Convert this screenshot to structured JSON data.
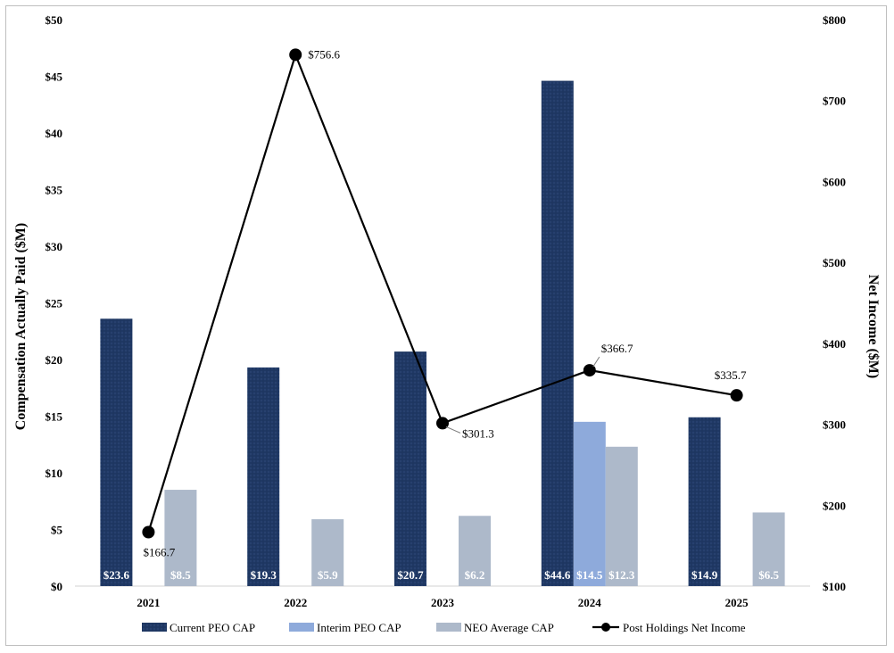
{
  "chart_data": {
    "type": "bar",
    "categories": [
      "2021",
      "2022",
      "2023",
      "2024",
      "2025"
    ],
    "series": [
      {
        "name": "Current PEO CAP",
        "axis": "left",
        "color": "#1f3864",
        "values": [
          23.6,
          19.3,
          20.7,
          44.6,
          14.9
        ],
        "labels": [
          "$23.6",
          "$19.3",
          "$20.7",
          "$44.6",
          "$14.9"
        ]
      },
      {
        "name": "Interim PEO CAP",
        "axis": "left",
        "color": "#8eaadb",
        "values": [
          null,
          null,
          null,
          14.5,
          null
        ],
        "labels": [
          "",
          "",
          "",
          "$14.5",
          ""
        ]
      },
      {
        "name": "NEO Average CAP",
        "axis": "left",
        "color": "#adb9ca",
        "values": [
          8.5,
          5.9,
          6.2,
          12.3,
          6.5
        ],
        "labels": [
          "$8.5",
          "$5.9",
          "$6.2",
          "$12.3",
          "$6.5"
        ]
      },
      {
        "name": "Post Holdings Net Income",
        "axis": "right",
        "type": "line",
        "color": "#000000",
        "values": [
          166.7,
          756.6,
          301.3,
          366.7,
          335.7
        ],
        "labels": [
          "$166.7",
          "$756.6",
          "$301.3",
          "$366.7",
          "$335.7"
        ]
      }
    ],
    "ylabel": "Compensation Actually Paid ($M)",
    "y2label": "Net Income ($M)",
    "ylim": [
      0,
      50
    ],
    "y2lim": [
      100,
      800
    ],
    "yticks": [
      "$0",
      "$5",
      "$10",
      "$15",
      "$20",
      "$25",
      "$30",
      "$35",
      "$40",
      "$45",
      "$50"
    ],
    "y2ticks": [
      "$100",
      "$200",
      "$300",
      "$400",
      "$500",
      "$600",
      "$700",
      "$800"
    ],
    "grid": false,
    "legend": "bottom"
  }
}
